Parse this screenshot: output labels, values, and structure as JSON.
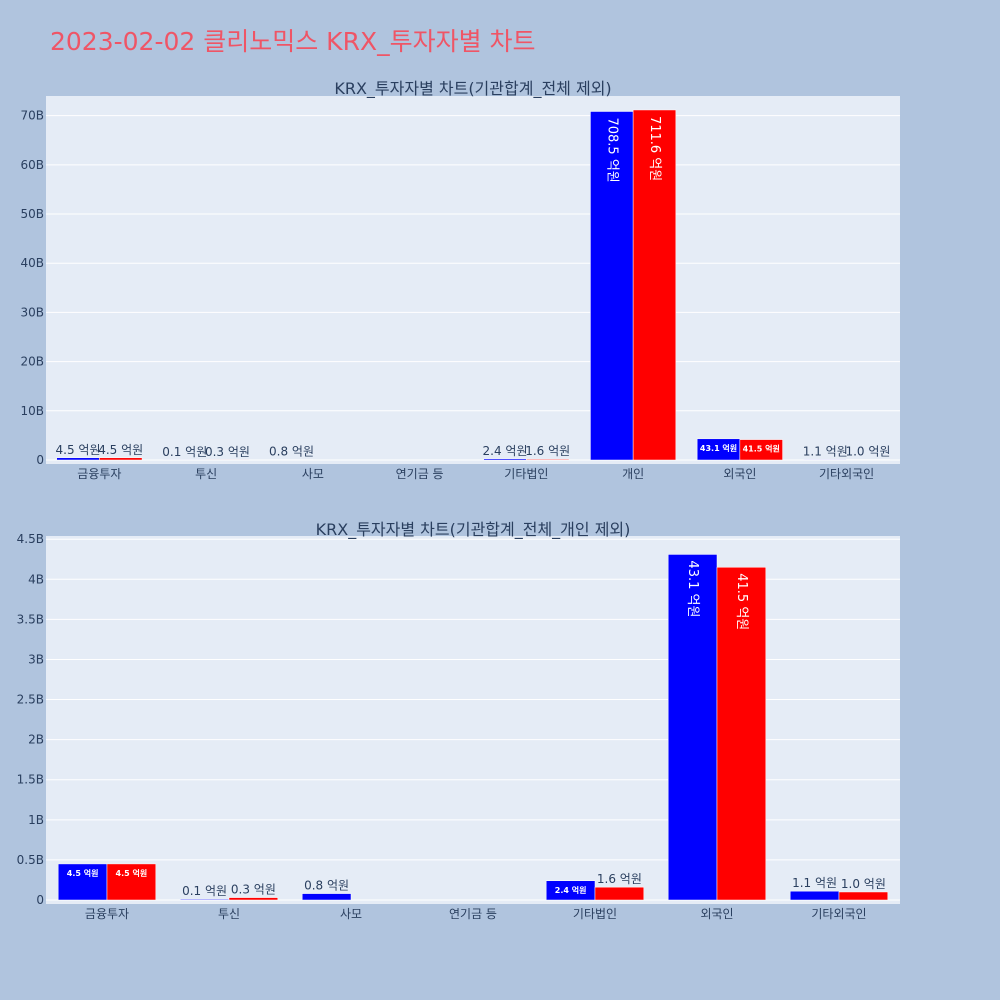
{
  "page_title": "2023-02-02 클리노믹스 KRX_투자자별 차트",
  "colors": {
    "buy": "#0000ff",
    "sell": "#ff0000",
    "plot_bg": "#e5ecf6",
    "page_bg": "#b0c4de",
    "title": "#ef5566"
  },
  "chart_data": [
    {
      "type": "bar",
      "title": "KRX_투자자별 차트(기관합계_전체 제외)",
      "categories": [
        "금융투자",
        "투신",
        "사모",
        "연기금 등",
        "기타법인",
        "개인",
        "외국인",
        "기타외국인"
      ],
      "series": [
        {
          "values": [
            450000000,
            10000000,
            80000000,
            0,
            240000000,
            70850000000,
            4310000000,
            110000000
          ],
          "labels": [
            "4.5 억원",
            "0.1 억원",
            "0.8 억원",
            "",
            "2.4 억원",
            "708.5 억원",
            "43.1 억원",
            "1.1 억원"
          ]
        },
        {
          "values": [
            450000000,
            30000000,
            0,
            0,
            160000000,
            71160000000,
            4150000000,
            100000000
          ],
          "labels": [
            "4.5 억원",
            "0.3 억원",
            "",
            "",
            "1.6 억원",
            "711.6 억원",
            "41.5 억원",
            "1.0 억원"
          ]
        }
      ],
      "ylim": [
        0,
        74000000000
      ],
      "yticks": [
        0,
        10000000000,
        20000000000,
        30000000000,
        40000000000,
        50000000000,
        60000000000,
        70000000000
      ],
      "ytick_labels": [
        "0",
        "10B",
        "20B",
        "30B",
        "40B",
        "50B",
        "60B",
        "70B"
      ],
      "grid": true,
      "legend": "none"
    },
    {
      "type": "bar",
      "title": "KRX_투자자별 차트(기관합계_전체_개인 제외)",
      "categories": [
        "금융투자",
        "투신",
        "사모",
        "연기금 등",
        "기타법인",
        "외국인",
        "기타외국인"
      ],
      "series": [
        {
          "values": [
            450000000,
            10000000,
            80000000,
            0,
            240000000,
            4310000000,
            110000000
          ],
          "labels": [
            "4.5 억원",
            "0.1 억원",
            "0.8 억원",
            "",
            "2.4 억원",
            "43.1 억원",
            "1.1 억원"
          ]
        },
        {
          "values": [
            450000000,
            30000000,
            0,
            0,
            160000000,
            4150000000,
            100000000
          ],
          "labels": [
            "4.5 억원",
            "0.3 억원",
            "",
            "",
            "1.6 억원",
            "41.5 억원",
            "1.0 억원"
          ]
        }
      ],
      "ylim": [
        0,
        4540000000
      ],
      "yticks": [
        0,
        500000000,
        1000000000,
        1500000000,
        2000000000,
        2500000000,
        3000000000,
        3500000000,
        4000000000,
        4500000000
      ],
      "ytick_labels": [
        "0",
        "0.5B",
        "1B",
        "1.5B",
        "2B",
        "2.5B",
        "3B",
        "3.5B",
        "4B",
        "4.5B"
      ],
      "grid": true,
      "legend": "none"
    }
  ]
}
